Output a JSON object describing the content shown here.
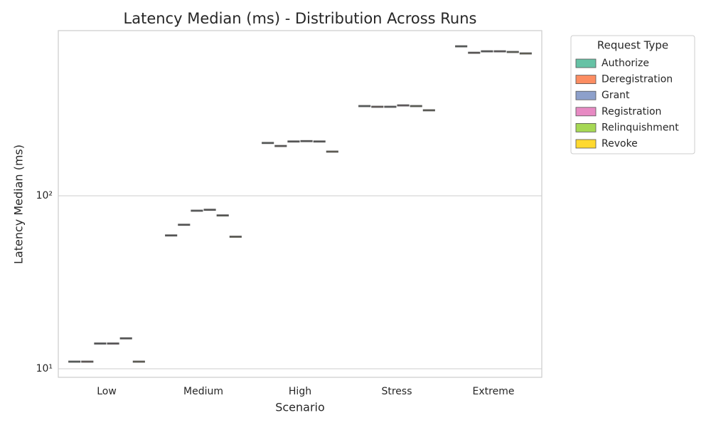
{
  "chart_data": {
    "type": "box",
    "title": "Latency Median (ms) - Distribution Across Runs",
    "x_label": "Scenario",
    "y_label": "Latency Median (ms)",
    "categories": [
      "Low",
      "Medium",
      "High",
      "Stress",
      "Extreme"
    ],
    "series": [
      {
        "name": "Authorize",
        "color": "#66c2a5",
        "values": [
          11,
          59,
          202,
          330,
          731
        ]
      },
      {
        "name": "Deregistration",
        "color": "#fc8d62",
        "values": [
          11,
          68,
          194,
          327,
          671
        ]
      },
      {
        "name": "Grant",
        "color": "#8da0cb",
        "values": [
          14,
          82,
          206,
          327,
          684
        ]
      },
      {
        "name": "Registration",
        "color": "#e78ac3",
        "values": [
          14,
          83,
          207,
          333,
          684
        ]
      },
      {
        "name": "Relinquishment",
        "color": "#a6d854",
        "values": [
          15,
          77,
          206,
          330,
          678
        ]
      },
      {
        "name": "Revoke",
        "color": "#ffd92f",
        "values": [
          11,
          58,
          180,
          312,
          665
        ]
      }
    ],
    "legend_title": "Request Type",
    "legend": "outside-upper-right",
    "ylim": [
      8.93,
      901
    ],
    "yticks": [
      {
        "value": 10,
        "label": "10¹"
      },
      {
        "value": 100,
        "label": "10²"
      }
    ],
    "log_y": true,
    "grid": true
  }
}
